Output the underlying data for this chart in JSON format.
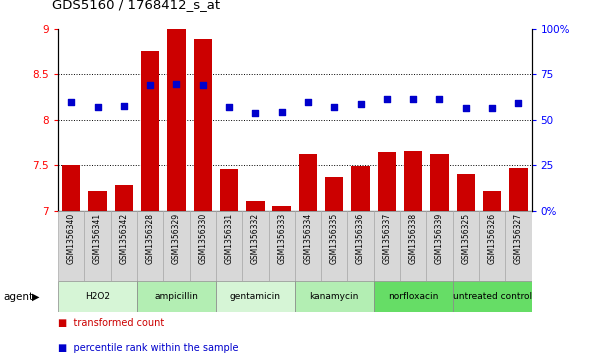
{
  "title": "GDS5160 / 1768412_s_at",
  "samples": [
    "GSM1356340",
    "GSM1356341",
    "GSM1356342",
    "GSM1356328",
    "GSM1356329",
    "GSM1356330",
    "GSM1356331",
    "GSM1356332",
    "GSM1356333",
    "GSM1356334",
    "GSM1356335",
    "GSM1356336",
    "GSM1356337",
    "GSM1356338",
    "GSM1356339",
    "GSM1356325",
    "GSM1356326",
    "GSM1356327"
  ],
  "bar_values": [
    7.5,
    7.22,
    7.28,
    8.76,
    9.0,
    8.89,
    7.46,
    7.11,
    7.05,
    7.62,
    7.37,
    7.49,
    7.65,
    7.66,
    7.62,
    7.4,
    7.22,
    7.47
  ],
  "dot_values": [
    8.2,
    8.14,
    8.15,
    8.38,
    8.39,
    8.38,
    8.14,
    8.08,
    8.09,
    8.2,
    8.14,
    8.17,
    8.23,
    8.23,
    8.23,
    8.13,
    8.13,
    8.18
  ],
  "bar_color": "#cc0000",
  "dot_color": "#0000cc",
  "ylim_left": [
    7.0,
    9.0
  ],
  "ylim_right": [
    0,
    100
  ],
  "yticks_left": [
    7.0,
    7.5,
    8.0,
    8.5,
    9.0
  ],
  "yticks_right": [
    0,
    25,
    50,
    75,
    100
  ],
  "hlines": [
    7.5,
    8.0,
    8.5
  ],
  "agent_groups": [
    {
      "label": "H2O2",
      "start": 0,
      "end": 3,
      "color": "#d6f5d6"
    },
    {
      "label": "ampicillin",
      "start": 3,
      "end": 6,
      "color": "#b3eeb3"
    },
    {
      "label": "gentamicin",
      "start": 6,
      "end": 9,
      "color": "#d6f5d6"
    },
    {
      "label": "kanamycin",
      "start": 9,
      "end": 12,
      "color": "#b3eeb3"
    },
    {
      "label": "norfloxacin",
      "start": 12,
      "end": 15,
      "color": "#66dd66"
    },
    {
      "label": "untreated control",
      "start": 15,
      "end": 18,
      "color": "#66dd66"
    }
  ],
  "legend_bar_label": "transformed count",
  "legend_dot_label": "percentile rank within the sample",
  "bar_width": 0.7,
  "agent_label": "agent"
}
